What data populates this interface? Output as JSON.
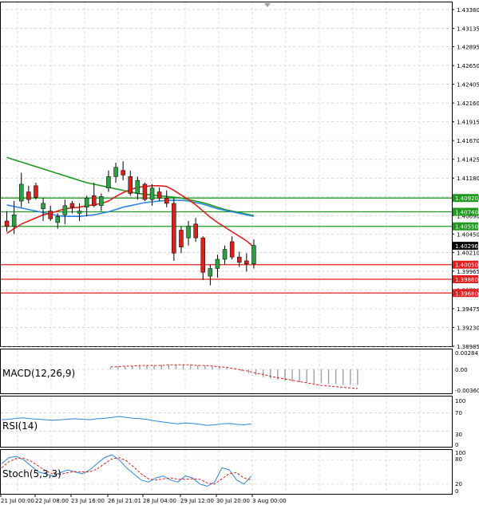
{
  "price_axis": {
    "labels": [
      "1.43380",
      "1.43135",
      "1.42895",
      "1.42650",
      "1.42405",
      "1.42160",
      "1.41915",
      "1.41670",
      "1.41425",
      "1.41180",
      "1.40935",
      "1.40690",
      "1.40450",
      "1.40210",
      "1.39965",
      "1.39720",
      "1.39475",
      "1.39230",
      "1.38985"
    ],
    "range": [
      1.38985,
      1.4338
    ]
  },
  "levels": [
    {
      "value": "1.40920",
      "color": "#1f9a1f",
      "kind": "resistance"
    },
    {
      "value": "1.40740",
      "color": "#1f9a1f",
      "kind": "resistance"
    },
    {
      "value": "1.40550",
      "color": "#1f9a1f",
      "kind": "resistance"
    },
    {
      "value": "1.40050",
      "color": "#e0201e",
      "kind": "support"
    },
    {
      "value": "1.39860",
      "color": "#e0201e",
      "kind": "support"
    },
    {
      "value": "1.39680",
      "color": "#e0201e",
      "kind": "support"
    }
  ],
  "current_price": {
    "value": "1.40296",
    "color": "#000000"
  },
  "time_axis": [
    "21 Jul 00:00",
    "22 Jul 08:00",
    "23 Jul 16:00",
    "26 Jul 21:01",
    "28 Jul 04:00",
    "29 Jul 12:00",
    "30 Jul 20:00",
    "3 Aug 00:00"
  ],
  "indicators": {
    "macd": {
      "label": "MACD(12,26,9)",
      "ticks": [
        "0.002841",
        "0.00",
        "-0.003604"
      ]
    },
    "rsi": {
      "label": "RSI(14)",
      "ticks": [
        "100",
        "70",
        "30",
        "0"
      ]
    },
    "stoch": {
      "label": "Stoch(5,3,3)",
      "ticks": [
        "100",
        "80",
        "20",
        "0"
      ]
    }
  },
  "colors": {
    "bull": "#2ea043",
    "bear": "#d9221c",
    "ma_fast": "#e0201e",
    "ma_mid": "#2e86de",
    "ma_slow": "#1f9a1f",
    "grid": "#c8ccd0"
  },
  "chart_data": {
    "type": "line",
    "candles": [
      {
        "o": 1.4062,
        "h": 1.4075,
        "l": 1.4048,
        "c": 1.4055
      },
      {
        "o": 1.4055,
        "h": 1.4088,
        "l": 1.4045,
        "c": 1.407
      },
      {
        "o": 1.4088,
        "h": 1.4125,
        "l": 1.408,
        "c": 1.411
      },
      {
        "o": 1.41,
        "h": 1.4108,
        "l": 1.4085,
        "c": 1.409
      },
      {
        "o": 1.4108,
        "h": 1.4112,
        "l": 1.409,
        "c": 1.4093
      },
      {
        "o": 1.4078,
        "h": 1.4092,
        "l": 1.4062,
        "c": 1.4085
      },
      {
        "o": 1.4075,
        "h": 1.4082,
        "l": 1.4062,
        "c": 1.4065
      },
      {
        "o": 1.406,
        "h": 1.4072,
        "l": 1.4052,
        "c": 1.4068
      },
      {
        "o": 1.407,
        "h": 1.409,
        "l": 1.4058,
        "c": 1.4082
      },
      {
        "o": 1.4085,
        "h": 1.4088,
        "l": 1.4072,
        "c": 1.408
      },
      {
        "o": 1.4072,
        "h": 1.4085,
        "l": 1.4062,
        "c": 1.4075
      },
      {
        "o": 1.408,
        "h": 1.4095,
        "l": 1.4068,
        "c": 1.4092
      },
      {
        "o": 1.4095,
        "h": 1.4112,
        "l": 1.408,
        "c": 1.4082
      },
      {
        "o": 1.4082,
        "h": 1.4098,
        "l": 1.4075,
        "c": 1.4094
      },
      {
        "o": 1.4105,
        "h": 1.4128,
        "l": 1.41,
        "c": 1.412
      },
      {
        "o": 1.412,
        "h": 1.4138,
        "l": 1.4112,
        "c": 1.4132
      },
      {
        "o": 1.4128,
        "h": 1.414,
        "l": 1.4115,
        "c": 1.4122
      },
      {
        "o": 1.412,
        "h": 1.4128,
        "l": 1.4095,
        "c": 1.4098
      },
      {
        "o": 1.4098,
        "h": 1.412,
        "l": 1.409,
        "c": 1.4115
      },
      {
        "o": 1.411,
        "h": 1.4112,
        "l": 1.4088,
        "c": 1.409
      },
      {
        "o": 1.409,
        "h": 1.411,
        "l": 1.4082,
        "c": 1.4105
      },
      {
        "o": 1.41,
        "h": 1.4106,
        "l": 1.4088,
        "c": 1.4092
      },
      {
        "o": 1.4092,
        "h": 1.4102,
        "l": 1.408,
        "c": 1.4085
      },
      {
        "o": 1.4085,
        "h": 1.4092,
        "l": 1.401,
        "c": 1.402
      },
      {
        "o": 1.405,
        "h": 1.4055,
        "l": 1.402,
        "c": 1.4028
      },
      {
        "o": 1.404,
        "h": 1.4062,
        "l": 1.403,
        "c": 1.4055
      },
      {
        "o": 1.4058,
        "h": 1.4066,
        "l": 1.4035,
        "c": 1.404
      },
      {
        "o": 1.404,
        "h": 1.4042,
        "l": 1.3985,
        "c": 1.3995
      },
      {
        "o": 1.399,
        "h": 1.4005,
        "l": 1.3978,
        "c": 1.4
      },
      {
        "o": 1.4,
        "h": 1.4018,
        "l": 1.3988,
        "c": 1.4012
      },
      {
        "o": 1.4012,
        "h": 1.403,
        "l": 1.4005,
        "c": 1.4025
      },
      {
        "o": 1.4035,
        "h": 1.4042,
        "l": 1.4012,
        "c": 1.4015
      },
      {
        "o": 1.4015,
        "h": 1.4022,
        "l": 1.4002,
        "c": 1.4008
      },
      {
        "o": 1.401,
        "h": 1.402,
        "l": 1.3996,
        "c": 1.4006
      },
      {
        "o": 1.4006,
        "h": 1.4038,
        "l": 1.4,
        "c": 1.403
      }
    ],
    "ma_fast": [
      1.4046,
      1.4052,
      1.4058,
      1.4062,
      1.4066,
      1.407,
      1.4072,
      1.4075,
      1.4078,
      1.4079,
      1.408,
      1.4082,
      1.4083,
      1.4085,
      1.4088,
      1.4094,
      1.4099,
      1.4103,
      1.4106,
      1.4107,
      1.4108,
      1.4108,
      1.4107,
      1.4102,
      1.4096,
      1.409,
      1.4083,
      1.4075,
      1.4067,
      1.406,
      1.4054,
      1.4048,
      1.4042,
      1.4036,
      1.4028
    ],
    "ma_mid": [
      1.4083,
      1.4081,
      1.4079,
      1.4077,
      1.4075,
      1.4073,
      1.4071,
      1.4069,
      1.4068,
      1.4068,
      1.4068,
      1.4069,
      1.407,
      1.4072,
      1.4074,
      1.4077,
      1.408,
      1.4082,
      1.4084,
      1.4086,
      1.4087,
      1.4088,
      1.4089,
      1.4089,
      1.4089,
      1.4088,
      1.4086,
      1.4084,
      1.4081,
      1.4078,
      1.4076,
      1.4074,
      1.4072,
      1.407,
      1.4068
    ],
    "ma_slow": [
      1.4145,
      1.4142,
      1.4139,
      1.4136,
      1.4133,
      1.413,
      1.4127,
      1.4124,
      1.4121,
      1.4118,
      1.4115,
      1.4112,
      1.411,
      1.4108,
      1.4106,
      1.4104,
      1.4102,
      1.41,
      1.4098,
      1.4097,
      1.4096,
      1.4095,
      1.4094,
      1.4093,
      1.4092,
      1.409,
      1.4088,
      1.4086,
      1.4083,
      1.408,
      1.4077,
      1.4075,
      1.4073,
      1.4071,
      1.4069
    ],
    "macd_hist": [
      0.0003,
      0.0004,
      0.0005,
      0.0005,
      0.0006,
      0.0006,
      0.0006,
      0.0007,
      0.0007,
      0.0007,
      0.0007,
      0.0007,
      0.0006,
      0.0006,
      0.0005,
      0.0004,
      0.0002,
      0.0,
      -0.0003,
      -0.0006,
      -0.0009,
      -0.0012,
      -0.0014,
      -0.0016,
      -0.0018,
      -0.0019,
      -0.002,
      -0.0021,
      -0.0022,
      -0.0022,
      -0.0023,
      -0.0023,
      -0.0024,
      -0.0024,
      -0.0024
    ],
    "macd_signal": [
      0.0004,
      0.0004,
      0.0005,
      0.0005,
      0.0006,
      0.0006,
      0.0006,
      0.0006,
      0.0007,
      0.0007,
      0.0007,
      0.0007,
      0.0006,
      0.0006,
      0.0005,
      0.0004,
      0.0003,
      0.0001,
      -0.0001,
      -0.0003,
      -0.0006,
      -0.0008,
      -0.0011,
      -0.0013,
      -0.0015,
      -0.0017,
      -0.0019,
      -0.0021,
      -0.0023,
      -0.0025,
      -0.0026,
      -0.0027,
      -0.0028,
      -0.0029,
      -0.003
    ],
    "rsi": [
      55,
      56,
      58,
      59,
      57,
      56,
      55,
      54,
      55,
      56,
      57,
      56,
      55,
      57,
      58,
      60,
      62,
      60,
      58,
      57,
      55,
      52,
      50,
      48,
      46,
      48,
      47,
      45,
      43,
      44,
      46,
      47,
      45,
      44,
      46
    ],
    "stoch_k": [
      70,
      85,
      88,
      80,
      65,
      50,
      45,
      40,
      48,
      55,
      50,
      45,
      55,
      70,
      85,
      92,
      80,
      60,
      45,
      30,
      25,
      35,
      40,
      30,
      25,
      40,
      35,
      20,
      15,
      25,
      60,
      55,
      30,
      20,
      40
    ],
    "stoch_d": [
      60,
      75,
      83,
      84,
      76,
      65,
      52,
      45,
      44,
      48,
      51,
      50,
      50,
      57,
      70,
      82,
      85,
      77,
      62,
      45,
      33,
      30,
      33,
      35,
      32,
      32,
      33,
      32,
      23,
      20,
      33,
      46,
      48,
      35,
      30
    ]
  }
}
